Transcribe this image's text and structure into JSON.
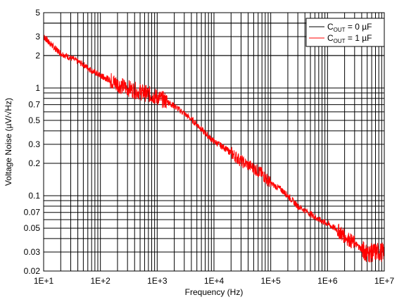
{
  "chart_data": {
    "type": "line",
    "xscale": "log",
    "yscale": "log",
    "xlim": [
      10,
      10000000
    ],
    "ylim": [
      0.02,
      5
    ],
    "xlabel": "Frequency (Hz)",
    "ylabel": "Voltage Noise (µV/√Hz)",
    "x_ticks": [
      10,
      100,
      1000,
      10000,
      100000,
      1000000,
      10000000
    ],
    "x_tick_labels": [
      "1E+1",
      "1E+2",
      "1E+3",
      "1E+4",
      "1E+5",
      "1E+6",
      "1E+7"
    ],
    "y_ticks": [
      0.02,
      0.03,
      0.05,
      0.07,
      0.1,
      0.2,
      0.3,
      0.5,
      0.7,
      1,
      2,
      3,
      5
    ],
    "y_tick_labels": [
      "0.02",
      "0.03",
      "0.05",
      "0.07",
      "0.1",
      "0.2",
      "0.3",
      "0.5",
      "0.7",
      "1",
      "2",
      "3",
      "5"
    ],
    "grid": true,
    "legend_position": "top-right",
    "legend": {
      "entries": [
        {
          "pre": "C",
          "sub": "OUT",
          "post": " = 0 µF",
          "color": "#000000"
        },
        {
          "pre": "C",
          "sub": "OUT",
          "post": " = 1 µF",
          "color": "#ff0000"
        }
      ]
    },
    "series": [
      {
        "color": "#ff0000",
        "x": [
          10,
          12,
          15,
          20,
          30,
          50,
          70,
          100,
          120,
          150,
          200,
          300,
          500,
          700,
          1000,
          1500,
          2000,
          3000,
          5000,
          7000,
          10000,
          15000,
          20000,
          30000,
          50000,
          70000,
          100000,
          150000,
          200000,
          300000,
          500000,
          700000,
          1000000,
          1500000,
          2000000,
          3000000,
          4000000,
          5000000,
          7000000,
          10000000
        ],
        "y": [
          3.0,
          2.7,
          2.4,
          2.1,
          1.9,
          1.65,
          1.45,
          1.3,
          1.25,
          1.18,
          1.08,
          1.0,
          0.92,
          0.88,
          0.82,
          0.75,
          0.68,
          0.58,
          0.46,
          0.38,
          0.32,
          0.28,
          0.25,
          0.21,
          0.18,
          0.16,
          0.13,
          0.115,
          0.1,
          0.08,
          0.068,
          0.06,
          0.055,
          0.048,
          0.042,
          0.036,
          0.032,
          0.029,
          0.03,
          0.03
        ]
      },
      {
        "color": "#000000",
        "x": [],
        "y": []
      }
    ]
  }
}
